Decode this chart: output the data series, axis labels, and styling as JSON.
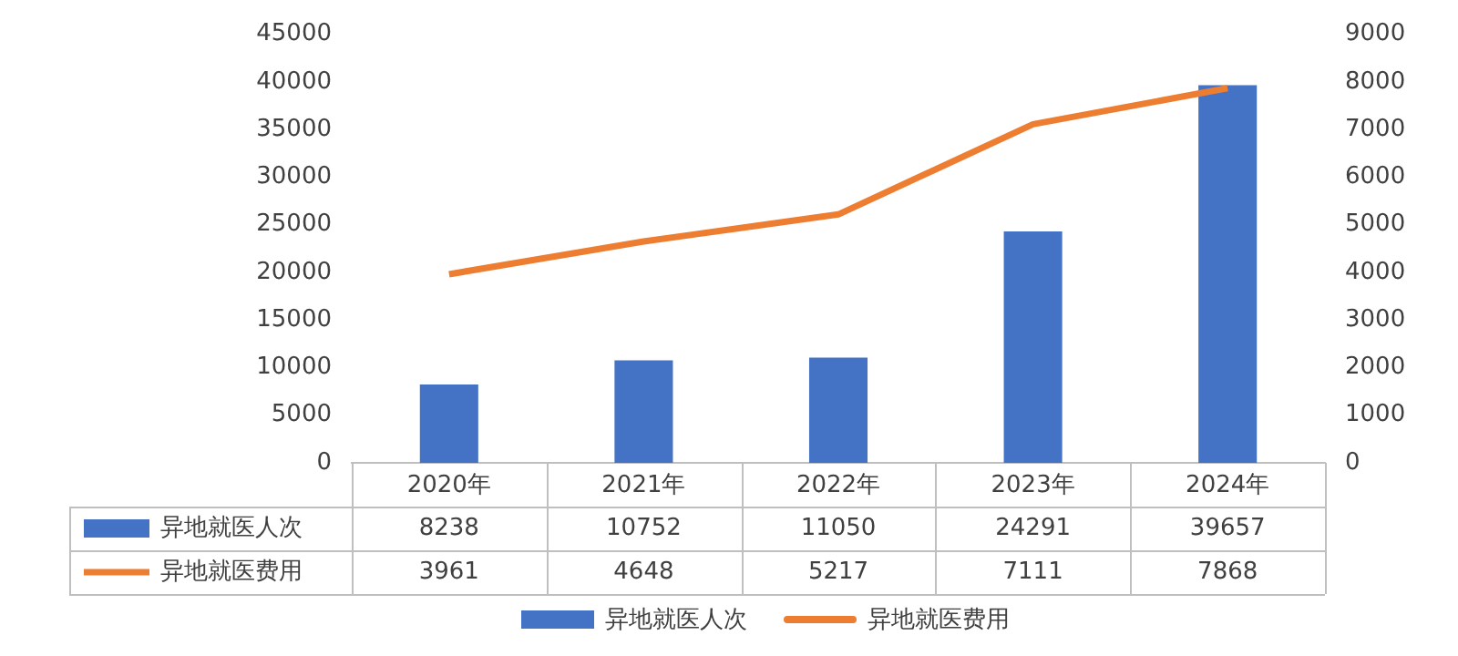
{
  "chart_data": {
    "type": "bar",
    "categories": [
      "2020年",
      "2021年",
      "2022年",
      "2023年",
      "2024年"
    ],
    "series": [
      {
        "name": "异地就医人次",
        "color": "#4472c4",
        "values": [
          8238,
          10752,
          11050,
          24291,
          39657
        ]
      },
      {
        "name": "异地就医费用",
        "type": "line",
        "axis": "y2",
        "color": "#ed7d31",
        "marker": "none",
        "values": [
          3961,
          4648,
          5217,
          7111,
          7868
        ]
      }
    ],
    "ylim": [
      0,
      45000
    ],
    "yticks": [
      0,
      5000,
      10000,
      15000,
      20000,
      25000,
      30000,
      35000,
      40000,
      45000
    ],
    "y2lim": [
      0,
      9000
    ],
    "y2ticks": [
      0,
      1000,
      2000,
      3000,
      4000,
      5000,
      6000,
      7000,
      8000,
      9000
    ],
    "grid": false,
    "legend": "bottom",
    "data_labels": true
  }
}
